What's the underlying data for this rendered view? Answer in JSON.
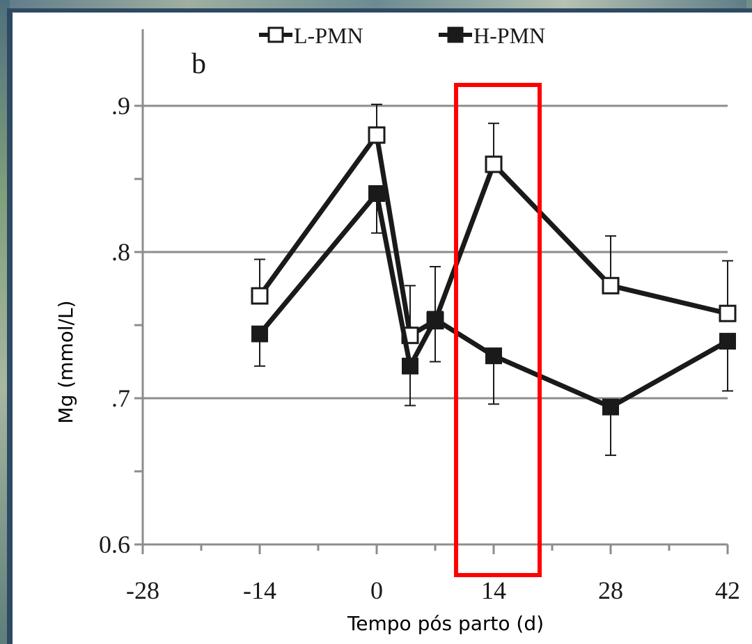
{
  "chart_data": {
    "type": "line",
    "panel_label": "b",
    "xlabel": "Tempo pós parto (d)",
    "ylabel": "Mg (mmol/L)",
    "xlim": [
      -28,
      42
    ],
    "ylim": [
      0.6,
      0.95
    ],
    "x_ticks": [
      -28,
      -14,
      0,
      14,
      28,
      42
    ],
    "x_tick_labels": [
      "-28",
      "-14",
      "0",
      "14",
      "28",
      "42"
    ],
    "y_ticks": [
      0.6,
      0.7,
      0.8,
      0.9
    ],
    "y_tick_labels": [
      "0.6",
      ".7",
      ".8",
      ".9"
    ],
    "grid": "horizontal",
    "legend_position": "top",
    "series": [
      {
        "name": "L-PMN",
        "marker": "open-square",
        "x": [
          -14,
          0,
          4,
          7,
          14,
          28,
          42
        ],
        "y": [
          0.77,
          0.88,
          0.743,
          0.753,
          0.86,
          0.777,
          0.758
        ],
        "error": [
          0.025,
          0.021,
          0.034,
          0.037,
          0.028,
          0.034,
          0.036
        ]
      },
      {
        "name": "H-PMN",
        "marker": "filled-square",
        "x": [
          -14,
          0,
          4,
          7,
          14,
          28,
          42
        ],
        "y": [
          0.744,
          0.84,
          0.722,
          0.754,
          0.729,
          0.694,
          0.739
        ],
        "error": [
          0.022,
          0.027,
          0.027,
          0.029,
          0.033,
          0.033,
          0.034
        ]
      }
    ],
    "highlight": {
      "x_range": [
        9.5,
        19.5
      ],
      "color": "#ff0000"
    }
  },
  "colors": {
    "line": "#1a1a1a",
    "grid": "#8c8c8c",
    "axis": "#8c8c8c",
    "highlight": "#ff0000"
  }
}
